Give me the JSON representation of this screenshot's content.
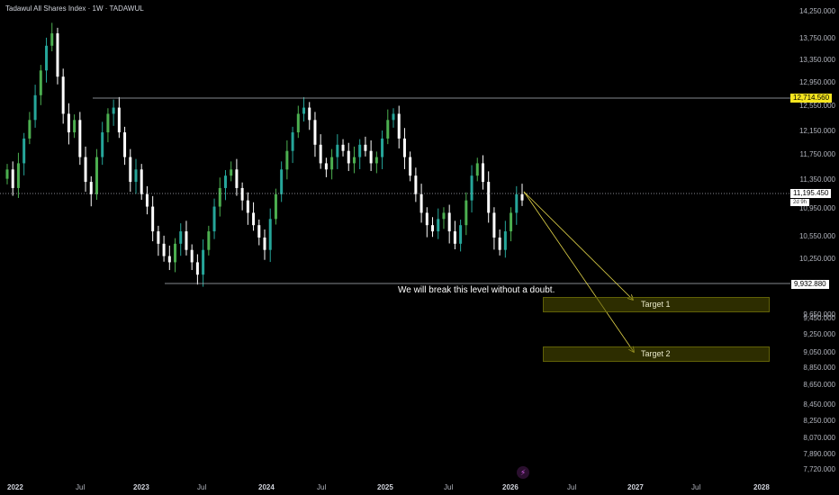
{
  "title": "Tadawul All Shares Index · 1W · TADAWUL",
  "price_axis": [
    "14,250.000",
    "13,750.000",
    "13,350.000",
    "12,950.000",
    "12,550.000",
    "12,150.000",
    "11,750.000",
    "11,350.000",
    "10,950.000",
    "10,550.000",
    "10,250.000",
    "9,650.000",
    "9,450.000",
    "9,250.000",
    "9,050.000",
    "8,850.000",
    "8,650.000",
    "8,450.000",
    "8,250.000",
    "8,070.000",
    "7,890.000",
    "7,720.000"
  ],
  "time_axis": [
    {
      "label": "2022",
      "major": true
    },
    {
      "label": "Jul",
      "major": false
    },
    {
      "label": "2023",
      "major": true
    },
    {
      "label": "Jul",
      "major": false
    },
    {
      "label": "2024",
      "major": true
    },
    {
      "label": "Jul",
      "major": false
    },
    {
      "label": "2025",
      "major": true
    },
    {
      "label": "Jul",
      "major": false
    },
    {
      "label": "2026",
      "major": true
    },
    {
      "label": "Jul",
      "major": false
    },
    {
      "label": "2027",
      "major": true
    },
    {
      "label": "Jul",
      "major": false
    },
    {
      "label": "2028",
      "major": true
    }
  ],
  "levels": {
    "resistance": "12,714.560",
    "support": "9,932.880",
    "current": "11,195.450",
    "countdown": "2d 9h"
  },
  "annotation": "We will break this level without a doubt.",
  "targets": [
    {
      "label": "Target 1"
    },
    {
      "label": "Target 2"
    }
  ],
  "bolt_icon": "⚡",
  "colors": {
    "up": "#26a69a",
    "up_alt": "#4caf50",
    "down": "#ffffff",
    "level_line": "#b2b5be",
    "arrow": "#e6d84a",
    "box": "#525200"
  },
  "chart_data": {
    "type": "candlestick",
    "title": "Tadawul All Shares Index",
    "x_range": [
      "2022-01",
      "2028-01"
    ],
    "ylim": [
      7720,
      14250
    ],
    "series": [
      {
        "values": [
          11700,
          11400,
          11800,
          12200,
          12500,
          12900,
          13300,
          13700,
          13900,
          13200,
          12600,
          12300,
          12500,
          11900,
          11500,
          11300,
          11900,
          12300,
          12600,
          12700,
          12300,
          11900,
          11500,
          11700,
          11300,
          11100,
          10700,
          10500,
          10300,
          10200,
          10500,
          10700,
          10400,
          10200,
          10000,
          10400,
          10700,
          11100,
          11400,
          11600,
          11700,
          11400,
          11200,
          11000,
          10800,
          10600,
          10400,
          10900,
          11300,
          11700,
          12000,
          12300,
          12600,
          12700,
          12500,
          12100,
          11800,
          11700,
          11900,
          12100,
          12000,
          11800,
          11900,
          12100,
          12000,
          11800,
          11900,
          12200,
          12500,
          12600,
          12200,
          11900,
          11600,
          11300,
          11000,
          10800,
          10700,
          10900,
          11000,
          10700,
          10500,
          10800,
          11200,
          11600,
          11800,
          11500,
          11000,
          10600,
          10400,
          10700,
          11000,
          11300,
          11200
        ]
      }
    ]
  }
}
